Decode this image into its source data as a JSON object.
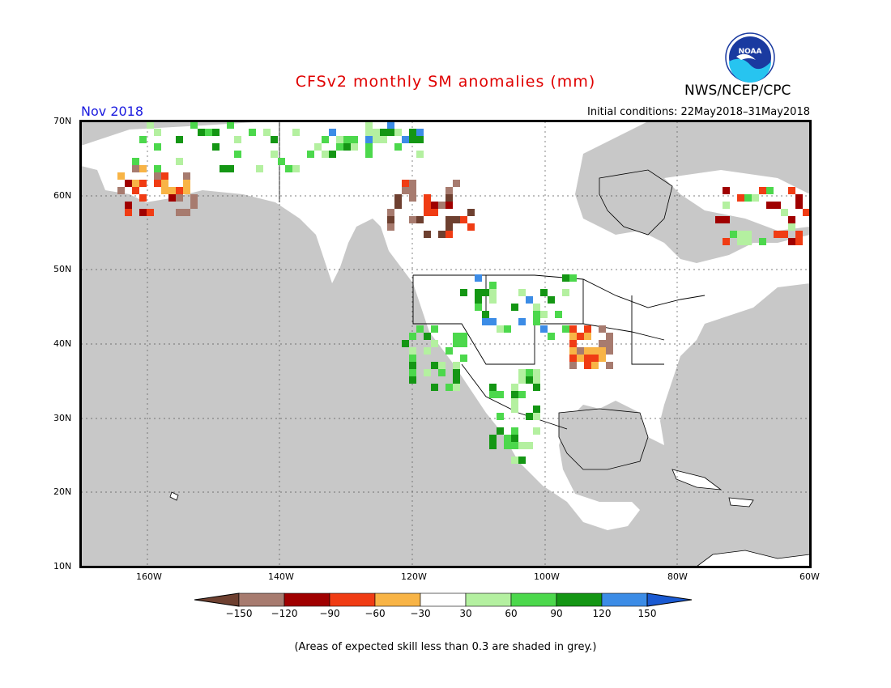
{
  "header": {
    "title": "CFSv2 monthly SM anomalies (mm)",
    "valid_month": "Nov 2018",
    "initial_conditions": "Initial conditions: 22May2018–31May2018",
    "agency": "NWS/NCEP/CPC",
    "logo_text": "NOAA"
  },
  "map": {
    "lon_labels": [
      "160W",
      "140W",
      "120W",
      "100W",
      "80W",
      "60W"
    ],
    "lat_labels": [
      "70N",
      "60N",
      "50N",
      "40N",
      "30N",
      "20N",
      "10N"
    ],
    "lon_range": [
      -172,
      -62
    ],
    "lat_range": [
      10,
      70
    ],
    "grid": true,
    "low_skill_color": "#c8c8c8",
    "land_color": "#ffffff"
  },
  "colorbar": {
    "ticks": [
      "-150",
      "-120",
      "-90",
      "-60",
      "-30",
      "30",
      "60",
      "90",
      "120",
      "150"
    ],
    "colors": [
      "#6e4030",
      "#a77b6f",
      "#a00000",
      "#f03c14",
      "#f8b446",
      "#ffffff",
      "#b4f0a0",
      "#4cd84c",
      "#149614",
      "#3c8ce6",
      "#1a5ad2"
    ]
  },
  "footnote": "(Areas of expected skill less than 0.3 are shaded in grey.)"
}
